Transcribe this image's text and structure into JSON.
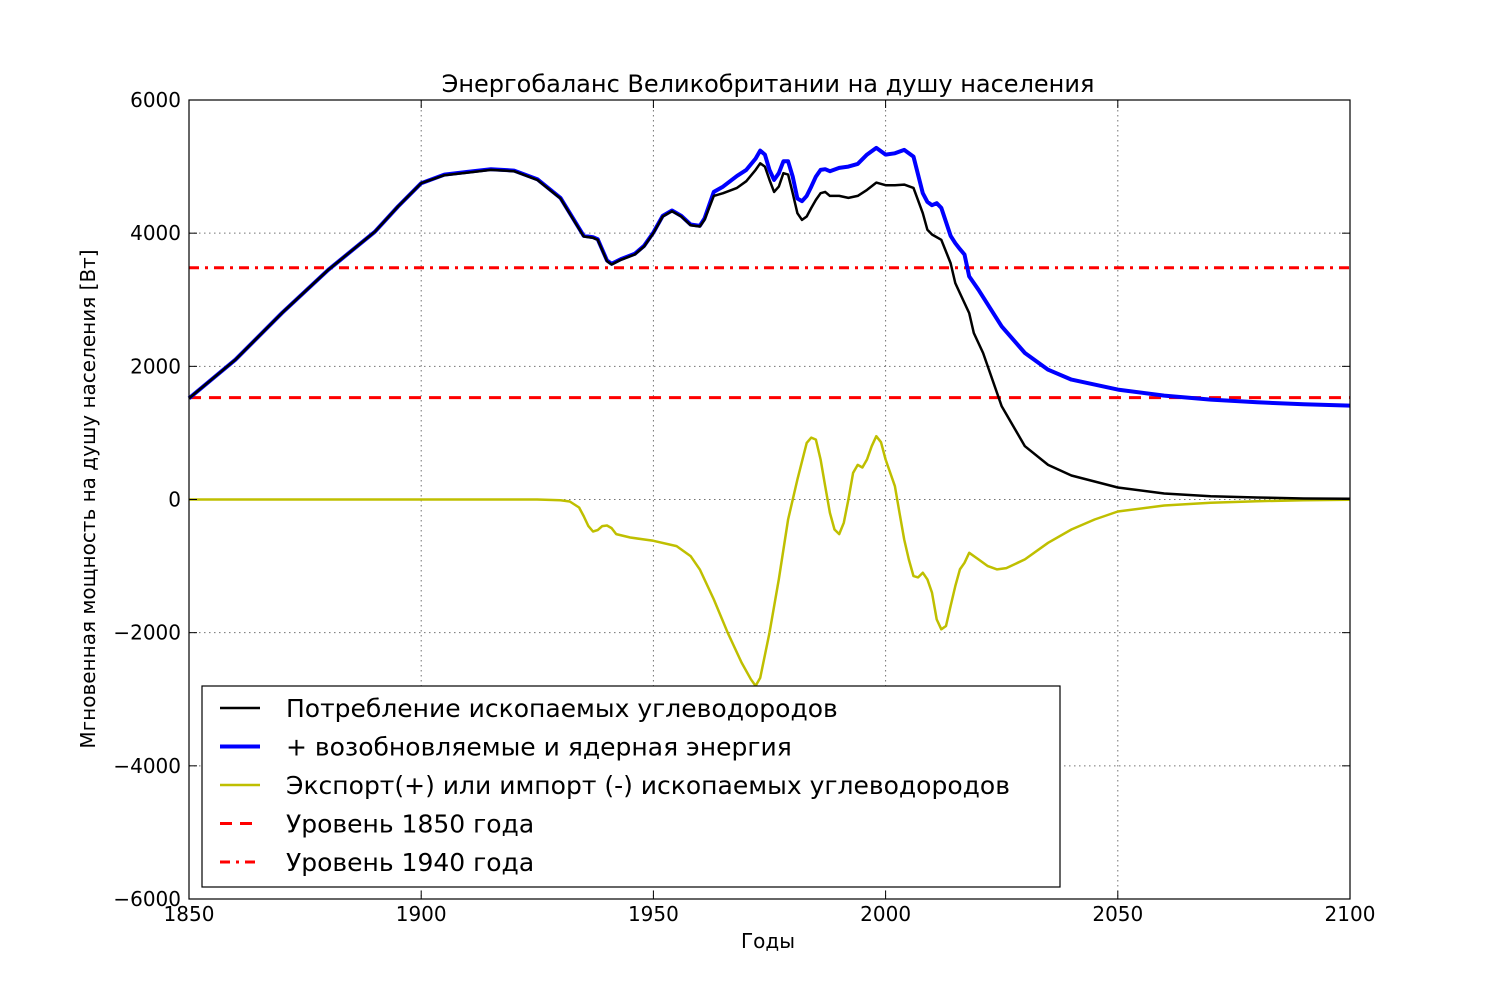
{
  "chart_data": {
    "type": "line",
    "title": "Энергобаланс Великобритании на душу населения",
    "xlabel": "Годы",
    "ylabel": "Мгновенная мощность на душу населения [Вт]",
    "xlim": [
      1850,
      2100
    ],
    "ylim": [
      -6000,
      6000
    ],
    "xticks": [
      1850,
      1900,
      1950,
      2000,
      2050,
      2100
    ],
    "yticks": [
      -6000,
      -4000,
      -2000,
      0,
      2000,
      4000,
      6000
    ],
    "ytick_labels": [
      "−6000",
      "−4000",
      "−2000",
      "0",
      "2000",
      "4000",
      "6000"
    ],
    "grid": true,
    "legend_position": "lower-left",
    "series": [
      {
        "name": "Потребление ископаемых углеводородов",
        "color": "#000000",
        "style": "solid",
        "points": [
          [
            1850,
            1520
          ],
          [
            1860,
            2100
          ],
          [
            1870,
            2800
          ],
          [
            1880,
            3450
          ],
          [
            1890,
            4020
          ],
          [
            1895,
            4400
          ],
          [
            1900,
            4750
          ],
          [
            1905,
            4870
          ],
          [
            1910,
            4910
          ],
          [
            1915,
            4950
          ],
          [
            1920,
            4930
          ],
          [
            1925,
            4800
          ],
          [
            1930,
            4520
          ],
          [
            1935,
            3950
          ],
          [
            1937,
            3930
          ],
          [
            1938,
            3900
          ],
          [
            1940,
            3580
          ],
          [
            1941,
            3530
          ],
          [
            1943,
            3600
          ],
          [
            1946,
            3680
          ],
          [
            1948,
            3800
          ],
          [
            1950,
            4000
          ],
          [
            1952,
            4250
          ],
          [
            1954,
            4330
          ],
          [
            1956,
            4250
          ],
          [
            1958,
            4120
          ],
          [
            1960,
            4100
          ],
          [
            1961,
            4200
          ],
          [
            1963,
            4560
          ],
          [
            1965,
            4600
          ],
          [
            1968,
            4680
          ],
          [
            1970,
            4780
          ],
          [
            1972,
            4950
          ],
          [
            1973,
            5050
          ],
          [
            1974,
            5000
          ],
          [
            1975,
            4800
          ],
          [
            1976,
            4620
          ],
          [
            1977,
            4700
          ],
          [
            1978,
            4900
          ],
          [
            1979,
            4880
          ],
          [
            1980,
            4600
          ],
          [
            1981,
            4300
          ],
          [
            1982,
            4200
          ],
          [
            1983,
            4250
          ],
          [
            1984,
            4380
          ],
          [
            1985,
            4500
          ],
          [
            1986,
            4600
          ],
          [
            1987,
            4620
          ],
          [
            1988,
            4560
          ],
          [
            1990,
            4560
          ],
          [
            1992,
            4530
          ],
          [
            1994,
            4560
          ],
          [
            1996,
            4650
          ],
          [
            1998,
            4760
          ],
          [
            2000,
            4720
          ],
          [
            2002,
            4720
          ],
          [
            2004,
            4730
          ],
          [
            2006,
            4680
          ],
          [
            2008,
            4300
          ],
          [
            2009,
            4050
          ],
          [
            2010,
            3980
          ],
          [
            2012,
            3900
          ],
          [
            2014,
            3550
          ],
          [
            2015,
            3250
          ],
          [
            2016,
            3100
          ],
          [
            2018,
            2800
          ],
          [
            2019,
            2500
          ],
          [
            2021,
            2200
          ],
          [
            2025,
            1400
          ],
          [
            2030,
            800
          ],
          [
            2035,
            520
          ],
          [
            2040,
            360
          ],
          [
            2050,
            180
          ],
          [
            2060,
            90
          ],
          [
            2070,
            50
          ],
          [
            2080,
            30
          ],
          [
            2090,
            15
          ],
          [
            2100,
            10
          ]
        ]
      },
      {
        "name": "+ возобновляемые и ядерная энергия",
        "color": "#0000ff",
        "style": "solid-thick",
        "points": [
          [
            1850,
            1520
          ],
          [
            1860,
            2100
          ],
          [
            1870,
            2800
          ],
          [
            1880,
            3450
          ],
          [
            1890,
            4020
          ],
          [
            1895,
            4400
          ],
          [
            1900,
            4750
          ],
          [
            1905,
            4880
          ],
          [
            1910,
            4920
          ],
          [
            1915,
            4960
          ],
          [
            1920,
            4940
          ],
          [
            1925,
            4810
          ],
          [
            1930,
            4530
          ],
          [
            1935,
            3960
          ],
          [
            1937,
            3940
          ],
          [
            1938,
            3910
          ],
          [
            1940,
            3590
          ],
          [
            1941,
            3540
          ],
          [
            1943,
            3610
          ],
          [
            1946,
            3690
          ],
          [
            1948,
            3810
          ],
          [
            1950,
            4010
          ],
          [
            1952,
            4260
          ],
          [
            1954,
            4340
          ],
          [
            1956,
            4260
          ],
          [
            1958,
            4130
          ],
          [
            1960,
            4110
          ],
          [
            1961,
            4220
          ],
          [
            1963,
            4620
          ],
          [
            1965,
            4700
          ],
          [
            1968,
            4860
          ],
          [
            1970,
            4950
          ],
          [
            1972,
            5120
          ],
          [
            1973,
            5240
          ],
          [
            1974,
            5180
          ],
          [
            1975,
            4950
          ],
          [
            1976,
            4800
          ],
          [
            1977,
            4900
          ],
          [
            1978,
            5080
          ],
          [
            1979,
            5080
          ],
          [
            1980,
            4850
          ],
          [
            1981,
            4520
          ],
          [
            1982,
            4480
          ],
          [
            1983,
            4560
          ],
          [
            1984,
            4700
          ],
          [
            1985,
            4850
          ],
          [
            1986,
            4950
          ],
          [
            1987,
            4960
          ],
          [
            1988,
            4930
          ],
          [
            1990,
            4980
          ],
          [
            1992,
            5000
          ],
          [
            1994,
            5040
          ],
          [
            1996,
            5180
          ],
          [
            1998,
            5280
          ],
          [
            2000,
            5180
          ],
          [
            2002,
            5200
          ],
          [
            2004,
            5250
          ],
          [
            2006,
            5150
          ],
          [
            2008,
            4600
          ],
          [
            2009,
            4470
          ],
          [
            2010,
            4420
          ],
          [
            2011,
            4450
          ],
          [
            2012,
            4380
          ],
          [
            2014,
            3960
          ],
          [
            2015,
            3850
          ],
          [
            2016,
            3760
          ],
          [
            2017,
            3680
          ],
          [
            2018,
            3350
          ],
          [
            2020,
            3150
          ],
          [
            2025,
            2600
          ],
          [
            2030,
            2200
          ],
          [
            2035,
            1950
          ],
          [
            2040,
            1800
          ],
          [
            2050,
            1650
          ],
          [
            2060,
            1560
          ],
          [
            2070,
            1500
          ],
          [
            2080,
            1460
          ],
          [
            2090,
            1430
          ],
          [
            2100,
            1410
          ]
        ]
      },
      {
        "name": "Экспорт(+) или импорт (-) ископаемых углеводородов",
        "color": "#bfbf00",
        "style": "solid",
        "points": [
          [
            1850,
            0
          ],
          [
            1900,
            0
          ],
          [
            1925,
            0
          ],
          [
            1930,
            -10
          ],
          [
            1932,
            -30
          ],
          [
            1934,
            -120
          ],
          [
            1935,
            -250
          ],
          [
            1936,
            -400
          ],
          [
            1937,
            -480
          ],
          [
            1938,
            -460
          ],
          [
            1939,
            -400
          ],
          [
            1940,
            -390
          ],
          [
            1941,
            -430
          ],
          [
            1942,
            -520
          ],
          [
            1945,
            -570
          ],
          [
            1950,
            -620
          ],
          [
            1955,
            -700
          ],
          [
            1958,
            -850
          ],
          [
            1960,
            -1050
          ],
          [
            1963,
            -1500
          ],
          [
            1966,
            -2000
          ],
          [
            1969,
            -2450
          ],
          [
            1971,
            -2700
          ],
          [
            1972,
            -2800
          ],
          [
            1973,
            -2680
          ],
          [
            1975,
            -2000
          ],
          [
            1977,
            -1200
          ],
          [
            1979,
            -300
          ],
          [
            1981,
            300
          ],
          [
            1983,
            850
          ],
          [
            1984,
            930
          ],
          [
            1985,
            900
          ],
          [
            1986,
            600
          ],
          [
            1987,
            200
          ],
          [
            1988,
            -200
          ],
          [
            1989,
            -450
          ],
          [
            1990,
            -520
          ],
          [
            1991,
            -350
          ],
          [
            1992,
            0
          ],
          [
            1993,
            400
          ],
          [
            1994,
            520
          ],
          [
            1995,
            480
          ],
          [
            1996,
            600
          ],
          [
            1997,
            800
          ],
          [
            1998,
            950
          ],
          [
            1999,
            860
          ],
          [
            2000,
            600
          ],
          [
            2002,
            200
          ],
          [
            2003,
            -200
          ],
          [
            2004,
            -600
          ],
          [
            2005,
            -900
          ],
          [
            2006,
            -1150
          ],
          [
            2007,
            -1170
          ],
          [
            2008,
            -1100
          ],
          [
            2009,
            -1200
          ],
          [
            2010,
            -1400
          ],
          [
            2011,
            -1800
          ],
          [
            2012,
            -1950
          ],
          [
            2013,
            -1900
          ],
          [
            2014,
            -1600
          ],
          [
            2015,
            -1300
          ],
          [
            2016,
            -1050
          ],
          [
            2017,
            -950
          ],
          [
            2018,
            -800
          ],
          [
            2020,
            -900
          ],
          [
            2022,
            -1000
          ],
          [
            2024,
            -1050
          ],
          [
            2026,
            -1030
          ],
          [
            2030,
            -900
          ],
          [
            2035,
            -650
          ],
          [
            2040,
            -450
          ],
          [
            2045,
            -300
          ],
          [
            2050,
            -180
          ],
          [
            2060,
            -90
          ],
          [
            2070,
            -50
          ],
          [
            2080,
            -25
          ],
          [
            2090,
            -12
          ],
          [
            2100,
            -5
          ]
        ]
      },
      {
        "name": "Уровень 1850 года",
        "color": "#ff0000",
        "style": "dashed",
        "points": [
          [
            1850,
            1530
          ],
          [
            2100,
            1530
          ]
        ]
      },
      {
        "name": "Уровень 1940 года",
        "color": "#ff0000",
        "style": "dashdot",
        "points": [
          [
            1850,
            3480
          ],
          [
            2100,
            3480
          ]
        ]
      }
    ]
  }
}
